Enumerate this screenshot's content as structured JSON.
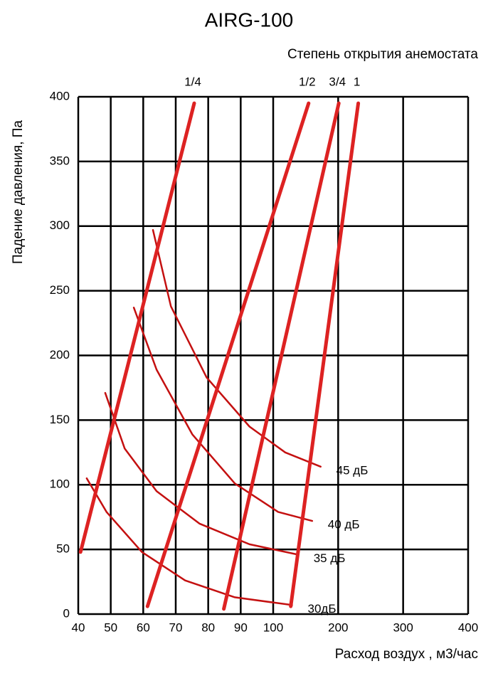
{
  "chart_data": {
    "type": "line",
    "title": "AIRG-100",
    "subtitle": "Степень открытия анемостата",
    "x_label": "Расход воздух , м3/час",
    "y_label": "Падение давления, Па",
    "xlim": [
      40,
      400
    ],
    "xticks": [
      40,
      50,
      60,
      70,
      80,
      90,
      100,
      200,
      300,
      400
    ],
    "ylim": [
      0,
      400
    ],
    "yticks": [
      0,
      50,
      100,
      150,
      200,
      250,
      300,
      350,
      400
    ],
    "grid": true,
    "series": [
      {
        "name": "1/4",
        "color": "#dd2222",
        "x": [
          40.7,
          75.7
        ],
        "values": [
          48,
          395
        ]
      },
      {
        "name": "1/2",
        "color": "#dd2222",
        "x": [
          61.3,
          154.5
        ],
        "values": [
          6,
          395
        ]
      },
      {
        "name": "3/4",
        "color": "#dd2222",
        "x": [
          84.8,
          201
        ],
        "values": [
          4,
          395
        ]
      },
      {
        "name": "1",
        "color": "#dd2222",
        "x": [
          127,
          231
        ],
        "values": [
          6,
          395
        ]
      }
    ],
    "noise_curves": [
      {
        "name": "30дБ",
        "color": "#c41010",
        "x": [
          42.6,
          48.7,
          59.6,
          72.9,
          88.2,
          129
        ],
        "values": [
          105,
          79,
          48,
          26,
          13,
          7
        ]
      },
      {
        "name": "35 дБ",
        "color": "#c41010",
        "x": [
          48.3,
          54.3,
          64.1,
          77.3,
          92.7,
          138
        ],
        "values": [
          171,
          128,
          95,
          70,
          54,
          46
        ]
      },
      {
        "name": "40 дБ",
        "color": "#c41010",
        "x": [
          57.1,
          64.1,
          75.1,
          88.2,
          107.6,
          160
        ],
        "values": [
          237,
          189,
          139,
          101,
          79,
          72
        ]
      },
      {
        "name": "45 дБ",
        "color": "#c41010",
        "x": [
          63,
          68.5,
          79.5,
          92.7,
          118.5,
          173
        ],
        "values": [
          297,
          238,
          183,
          145,
          125,
          114
        ]
      }
    ]
  }
}
